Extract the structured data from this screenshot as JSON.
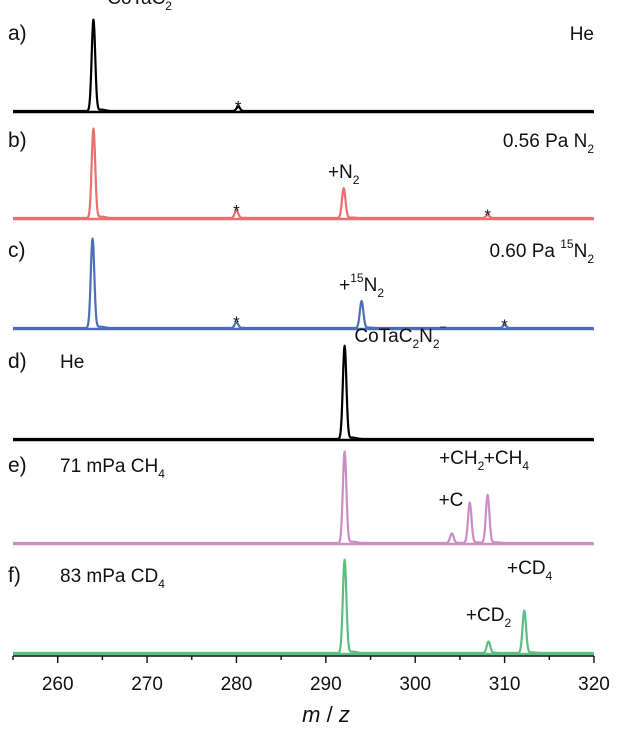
{
  "chart_data": {
    "type": "line",
    "xlabel_italic_m": "m",
    "xlabel_sep": " / ",
    "xlabel_italic_z": "z",
    "xlim": [
      255,
      320
    ],
    "xticks": [
      "260",
      "270",
      "280",
      "290",
      "300",
      "310",
      "320"
    ],
    "panels": [
      {
        "letter": "a)",
        "color": "#000000",
        "condition": {
          "text": "He",
          "sub": "",
          "pre_sup": "",
          "suffix": ""
        },
        "peaks": [
          {
            "x": 264.0,
            "h": 0.95
          },
          {
            "x": 280.2,
            "h": 0.045
          }
        ],
        "labels": [
          {
            "x": 264.2,
            "h": 0.99,
            "text": "CoTaC",
            "sub": "2",
            "sup": "−",
            "anchor": "start",
            "dx": 12,
            "dy": -2
          },
          {
            "x": 280.2,
            "h": 0.045,
            "text": "*",
            "sub": "",
            "sup": "",
            "anchor": "middle"
          }
        ]
      },
      {
        "letter": "b)",
        "color": "#e8706f",
        "condition": {
          "text": "0.56 Pa N",
          "sub": "2",
          "pre_sup": "",
          "suffix": ""
        },
        "peaks": [
          {
            "x": 264.0,
            "h": 0.93
          },
          {
            "x": 280.0,
            "h": 0.08
          },
          {
            "x": 292.0,
            "h": 0.31
          },
          {
            "x": 308.1,
            "h": 0.03
          }
        ],
        "labels": [
          {
            "x": 292.0,
            "h": 0.31,
            "text": "+N",
            "sub": "2",
            "sup": "",
            "anchor": "middle"
          },
          {
            "x": 280.0,
            "h": 0.08,
            "text": "*",
            "sub": "",
            "sup": "",
            "anchor": "middle"
          },
          {
            "x": 308.1,
            "h": 0.03,
            "text": "*",
            "sub": "",
            "sup": "",
            "anchor": "middle"
          }
        ]
      },
      {
        "letter": "c)",
        "color": "#4c6fb5",
        "condition": {
          "text": "0.60 Pa ",
          "sub": "2",
          "pre_sup": "15",
          "suffix": "N"
        },
        "peaks": [
          {
            "x": 263.9,
            "h": 0.93
          },
          {
            "x": 280.0,
            "h": 0.06
          },
          {
            "x": 294.0,
            "h": 0.28
          },
          {
            "x": 310.0,
            "h": 0.03
          }
        ],
        "labels": [
          {
            "x": 294.0,
            "h": 0.28,
            "text": "+",
            "sup_mid": "15",
            "text2": "N",
            "sub": "2",
            "sup": "",
            "anchor": "middle"
          },
          {
            "x": 280.0,
            "h": 0.06,
            "text": "*",
            "sub": "",
            "sup": "",
            "anchor": "middle"
          },
          {
            "x": 310.0,
            "h": 0.03,
            "text": "*",
            "sub": "",
            "sup": "",
            "anchor": "middle"
          }
        ]
      },
      {
        "letter": "d)",
        "color": "#000000",
        "condition": {
          "text": "He",
          "sub": "",
          "pre_sup": "",
          "suffix": ""
        },
        "peaks": [
          {
            "x": 292.1,
            "h": 0.97
          }
        ],
        "labels": [
          {
            "x": 292.3,
            "h": 0.97,
            "text": "CoTaC",
            "sub": "2",
            "text3": "N",
            "sub2": "2",
            "sup": "−",
            "anchor": "start",
            "dx": 8,
            "dy": 6
          }
        ]
      },
      {
        "letter": "e)",
        "color": "#cc8cc4",
        "condition": {
          "text": "71 mPa CH",
          "sub": "4",
          "pre_sup": "",
          "suffix": ""
        },
        "peaks": [
          {
            "x": 292.1,
            "h": 0.95
          },
          {
            "x": 304.1,
            "h": 0.1
          },
          {
            "x": 306.1,
            "h": 0.42
          },
          {
            "x": 308.1,
            "h": 0.5
          }
        ],
        "labels": [
          {
            "x": 304.0,
            "h": 0.28,
            "text": "+C",
            "sub": "",
            "sup": "",
            "anchor": "middle"
          },
          {
            "x": 305.2,
            "h": 0.72,
            "text": "+CH",
            "sub": "2",
            "sup": "",
            "anchor": "middle"
          },
          {
            "x": 310.2,
            "h": 0.72,
            "text": "+CH",
            "sub": "4",
            "sup": "",
            "anchor": "middle"
          }
        ]
      },
      {
        "letter": "f)",
        "color": "#5bbf82",
        "condition": {
          "text": "83 mPa CD",
          "sub": "4",
          "pre_sup": "",
          "suffix": ""
        },
        "peaks": [
          {
            "x": 292.1,
            "h": 0.97
          },
          {
            "x": 308.2,
            "h": 0.12
          },
          {
            "x": 312.2,
            "h": 0.44
          }
        ],
        "labels": [
          {
            "x": 308.2,
            "h": 0.23,
            "text": "+CD",
            "sub": "2",
            "sup": "",
            "anchor": "middle"
          },
          {
            "x": 312.8,
            "h": 0.72,
            "text": "+CD",
            "sub": "4",
            "sup": "",
            "anchor": "middle"
          }
        ]
      }
    ]
  }
}
